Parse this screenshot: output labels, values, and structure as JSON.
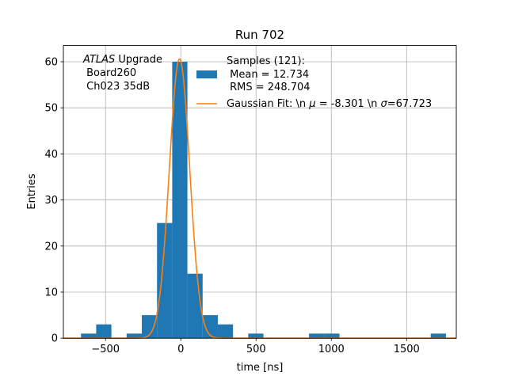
{
  "chart_data": {
    "type": "bar",
    "title": "Run 702",
    "xlabel": "time [ns]",
    "ylabel": "Entries",
    "xlim": [
      -780,
      1830
    ],
    "ylim": [
      0,
      63.5
    ],
    "xticks": [
      -500,
      0,
      500,
      1000,
      1500
    ],
    "yticks": [
      0,
      10,
      20,
      30,
      40,
      50,
      60
    ],
    "xtick_labels": [
      "−500",
      "0",
      "500",
      "1000",
      "1500"
    ],
    "ytick_labels": [
      "0",
      "10",
      "20",
      "30",
      "40",
      "50",
      "60"
    ],
    "grid": true,
    "bar_color": "#1f77b4",
    "fit_color": "#ff7f0e",
    "bins": [
      {
        "x0": -663,
        "x1": -562,
        "count": 1
      },
      {
        "x0": -562,
        "x1": -461,
        "count": 3
      },
      {
        "x0": -360,
        "x1": -259,
        "count": 1
      },
      {
        "x0": -259,
        "x1": -158,
        "count": 5
      },
      {
        "x0": -158,
        "x1": -57,
        "count": 25
      },
      {
        "x0": -57,
        "x1": 44,
        "count": 60
      },
      {
        "x0": 44,
        "x1": 145,
        "count": 14
      },
      {
        "x0": 145,
        "x1": 246,
        "count": 5
      },
      {
        "x0": 246,
        "x1": 347,
        "count": 3
      },
      {
        "x0": 448,
        "x1": 549,
        "count": 1
      },
      {
        "x0": 852,
        "x1": 953,
        "count": 1
      },
      {
        "x0": 953,
        "x1": 1054,
        "count": 1
      },
      {
        "x0": 1660,
        "x1": 1761,
        "count": 1
      }
    ],
    "fit": {
      "mu": -8.301,
      "sigma": 67.723,
      "amplitude": 60.6
    },
    "annotation": {
      "line1_italic": "ATLAS",
      "line1_rest": " Upgrade",
      "line2": " Board260",
      "line3": " Ch023 35dB"
    },
    "legend": {
      "placement": "top-right",
      "hist_line1": "Samples (121):",
      "hist_line2": " Mean = 12.734",
      "hist_line3": " RMS = 248.704",
      "fit_prefix": "Gaussian Fit: \\n ",
      "fit_mu": "μ",
      "fit_mid": " = -8.301 \\n ",
      "fit_sigma": "σ",
      "fit_suffix": "=67.723"
    }
  }
}
